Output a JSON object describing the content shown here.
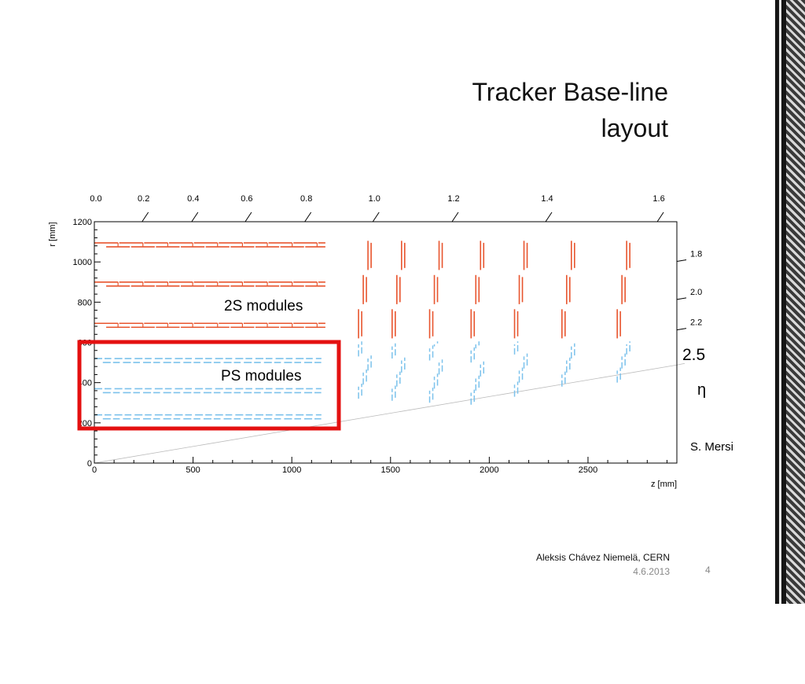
{
  "slide": {
    "title_line1": "Tracker Base-line",
    "title_line2": "layout",
    "author": "Aleksis Chávez Niemelä, CERN",
    "date": "4.6.2013",
    "page_number": "4"
  },
  "diagram": {
    "x_axis_label": "z [mm]",
    "y_axis_label": "r [mm]",
    "x_ticks": [
      "0",
      "500",
      "1000",
      "1500",
      "2000",
      "2500"
    ],
    "y_ticks": [
      "0",
      "200",
      "400",
      "600",
      "800",
      "1000",
      "1200"
    ],
    "eta_labels": [
      "0.0",
      "0.2",
      "0.4",
      "0.6",
      "0.8",
      "1.0",
      "1.2",
      "1.4",
      "1.6",
      "1.8",
      "2.0",
      "2.2"
    ],
    "eta_boundary_value": "2.5",
    "eta_symbol": "η",
    "label_2s": "2S modules",
    "label_ps": "PS modules",
    "credit": "S. Mersi",
    "colors": {
      "module_2s": "#e8552e",
      "module_ps": "#7cc2ec",
      "highlight_box": "#e41010",
      "axis": "#000000",
      "eta_line": "#bbbbbb"
    }
  },
  "chart_data": {
    "type": "scatter",
    "xlabel": "z [mm]",
    "ylabel": "r [mm]",
    "xlim": [
      0,
      2950
    ],
    "ylim": [
      0,
      1200
    ],
    "x_tick_values": [
      0,
      500,
      1000,
      1500,
      2000,
      2500
    ],
    "y_tick_values": [
      0,
      200,
      400,
      600,
      800,
      1000,
      1200
    ],
    "top_axis": {
      "quantity": "η",
      "tick_values": [
        0.0,
        0.2,
        0.4,
        0.6,
        0.8,
        1.0,
        1.2,
        1.4,
        1.6,
        1.8,
        2.0,
        2.2
      ]
    },
    "eta_boundary": 2.5,
    "barrel_layers": [
      {
        "type": "PS",
        "r": 230,
        "z_max": 1150
      },
      {
        "type": "PS",
        "r": 360,
        "z_max": 1150
      },
      {
        "type": "PS",
        "r": 510,
        "z_max": 1150
      },
      {
        "type": "2S",
        "r": 685,
        "z_max": 1170
      },
      {
        "type": "2S",
        "r": 890,
        "z_max": 1170
      },
      {
        "type": "2S",
        "r": 1085,
        "z_max": 1170
      }
    ],
    "endcap_disks": [
      {
        "z": 1350,
        "r_min_ps": 320
      },
      {
        "z": 1520,
        "r_min_ps": 310
      },
      {
        "z": 1710,
        "r_min_ps": 300
      },
      {
        "z": 1920,
        "r_min_ps": 290
      },
      {
        "z": 2140,
        "r_min_ps": 330
      },
      {
        "z": 2380,
        "r_min_ps": 380
      },
      {
        "z": 2660,
        "r_min_ps": 400
      }
    ],
    "ps_2s_boundary_r": 590,
    "disk_r_max": 1120
  }
}
